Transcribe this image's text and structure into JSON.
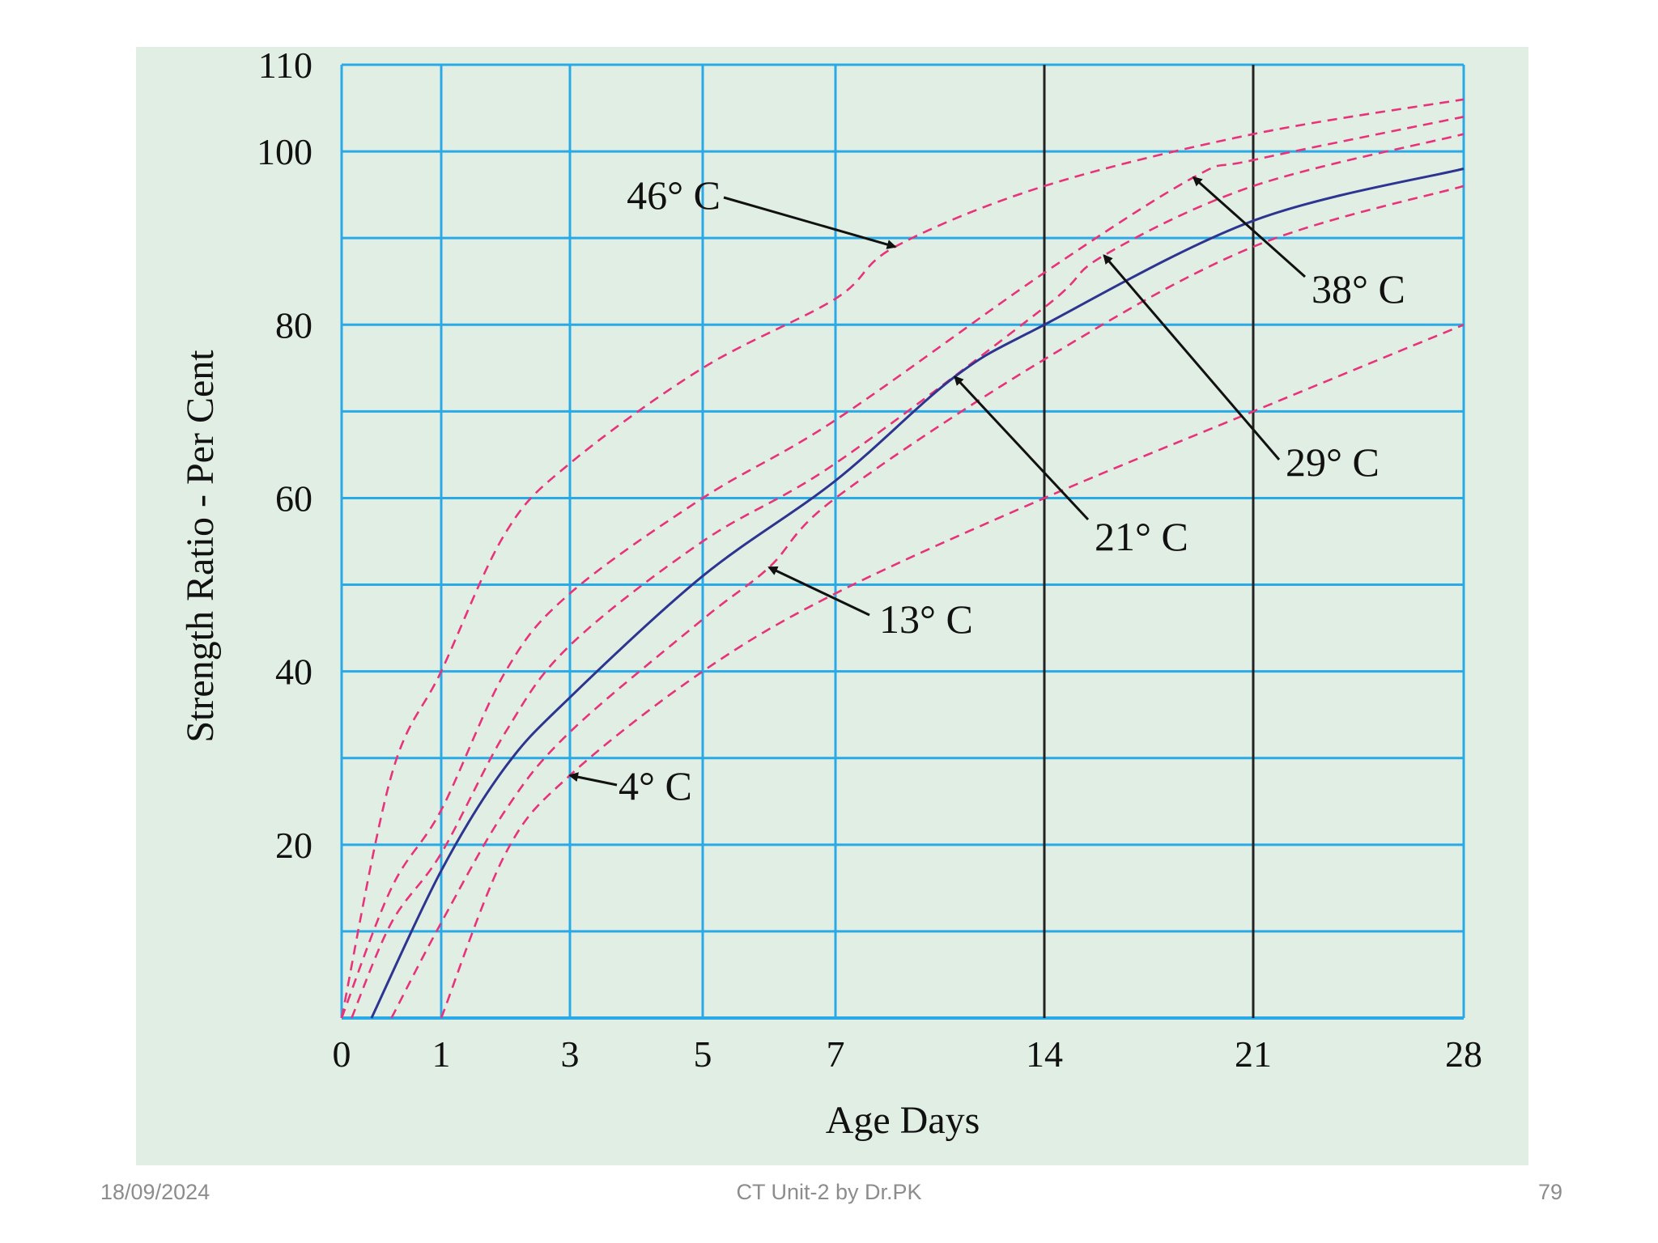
{
  "chart_data": {
    "type": "line",
    "title": "",
    "xlabel": "Age Days",
    "ylabel": "Strength Ratio - Per Cent",
    "xlim": [
      0,
      28
    ],
    "ylim": [
      0,
      110
    ],
    "x_ticks": [
      0,
      1,
      3,
      5,
      7,
      14,
      21,
      28
    ],
    "x_tick_labels": [
      "0",
      "1",
      "3",
      "5",
      "7",
      "14",
      "21",
      "28"
    ],
    "y_ticks": [
      20,
      40,
      60,
      80,
      100,
      110
    ],
    "y_tick_labels": [
      "20",
      "40",
      "60",
      "80",
      "100",
      "110"
    ],
    "y_gridlines": [
      10,
      20,
      30,
      40,
      50,
      60,
      70,
      80,
      90,
      100,
      110
    ],
    "emphasized_x_lines": [
      14,
      21
    ],
    "grid": true,
    "series": [
      {
        "name": "46° C",
        "style": "dashed",
        "color": "#e8337a",
        "x": [
          0,
          0.5,
          1,
          2,
          3,
          5,
          7,
          9,
          14,
          21,
          28
        ],
        "y": [
          0,
          28,
          40,
          56,
          64,
          75,
          83,
          89,
          96,
          102,
          106
        ]
      },
      {
        "name": "38° C",
        "style": "dashed",
        "color": "#e8337a",
        "x": [
          0,
          0.5,
          1,
          2,
          3,
          5,
          7,
          14,
          19,
          21,
          28
        ],
        "y": [
          0,
          15,
          24,
          40,
          49,
          60,
          69,
          86,
          97,
          99,
          104
        ]
      },
      {
        "name": "29° C",
        "style": "dashed",
        "color": "#e8337a",
        "x": [
          0.1,
          0.5,
          1,
          2,
          3,
          5,
          7,
          14,
          16,
          21,
          28
        ],
        "y": [
          0,
          11,
          19,
          33,
          43,
          55,
          64,
          82,
          88,
          96,
          102
        ]
      },
      {
        "name": "21° C",
        "style": "solid",
        "color": "#2e3590",
        "x": [
          0.3,
          1,
          2,
          3,
          5,
          7,
          11,
          14,
          21,
          28
        ],
        "y": [
          0,
          17,
          29,
          37,
          51,
          62,
          74,
          80,
          92,
          98
        ]
      },
      {
        "name": "13° C",
        "style": "dashed",
        "color": "#e8337a",
        "x": [
          0.5,
          1,
          2,
          3,
          5,
          6,
          7,
          14,
          21,
          28
        ],
        "y": [
          0,
          11,
          24,
          33,
          46,
          52,
          60,
          76,
          89,
          96
        ]
      },
      {
        "name": "4° C",
        "style": "dashed",
        "color": "#e8337a",
        "x": [
          1,
          2,
          3,
          5,
          7,
          14,
          21,
          28
        ],
        "y": [
          0,
          19,
          28,
          40,
          49,
          60,
          70,
          80
        ]
      }
    ],
    "annotations": [
      {
        "text": "46° C",
        "points_to": {
          "x": 9,
          "y": 89
        }
      },
      {
        "text": "38° C",
        "points_to": {
          "x": 19,
          "y": 97
        }
      },
      {
        "text": "29° C",
        "points_to": {
          "x": 16,
          "y": 88
        }
      },
      {
        "text": "21° C",
        "points_to": {
          "x": 11,
          "y": 74
        }
      },
      {
        "text": "13° C",
        "points_to": {
          "x": 6,
          "y": 52
        }
      },
      {
        "text": "4° C",
        "points_to": {
          "x": 3,
          "y": 28
        }
      }
    ],
    "colors": {
      "background": "#e1eee3",
      "grid": "#29a9e6",
      "emphasized_lines": "#222222",
      "dashed_curves": "#e8337a",
      "solid_curve": "#2e3590",
      "text": "#111111"
    }
  },
  "footer": {
    "date": "18/09/2024",
    "center_text": "CT Unit-2 by Dr.PK",
    "page_number": "79"
  }
}
